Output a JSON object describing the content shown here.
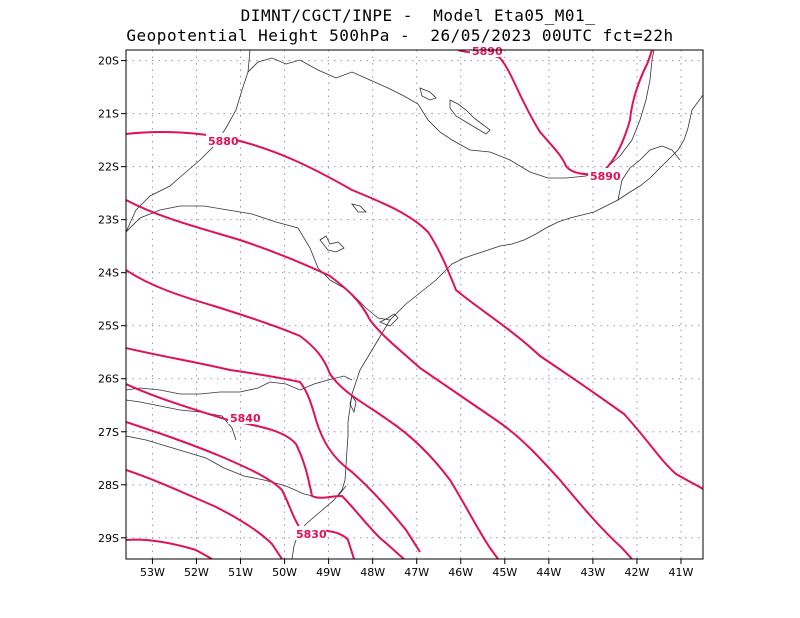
{
  "title": {
    "line1": "DIMNT/CGCT/INPE -  Model Eta05_M01_",
    "line2": "Geopotential Height 500hPa -  26/05/2023 00UTC fct=22h"
  },
  "map": {
    "lon_range": [
      -53.6,
      -40.5
    ],
    "lat_range": [
      -29.4,
      -19.8
    ],
    "lon_ticks": [
      "53W",
      "52W",
      "51W",
      "50W",
      "49W",
      "48W",
      "47W",
      "46W",
      "45W",
      "44W",
      "43W",
      "42W",
      "41W"
    ],
    "lat_ticks": [
      "20S",
      "21S",
      "22S",
      "23S",
      "24S",
      "25S",
      "26S",
      "27S",
      "28S",
      "29S"
    ],
    "contour_color": "#e0105a",
    "contour_labels": [
      "5880",
      "5890",
      "5890",
      "5840",
      "5830"
    ]
  }
}
